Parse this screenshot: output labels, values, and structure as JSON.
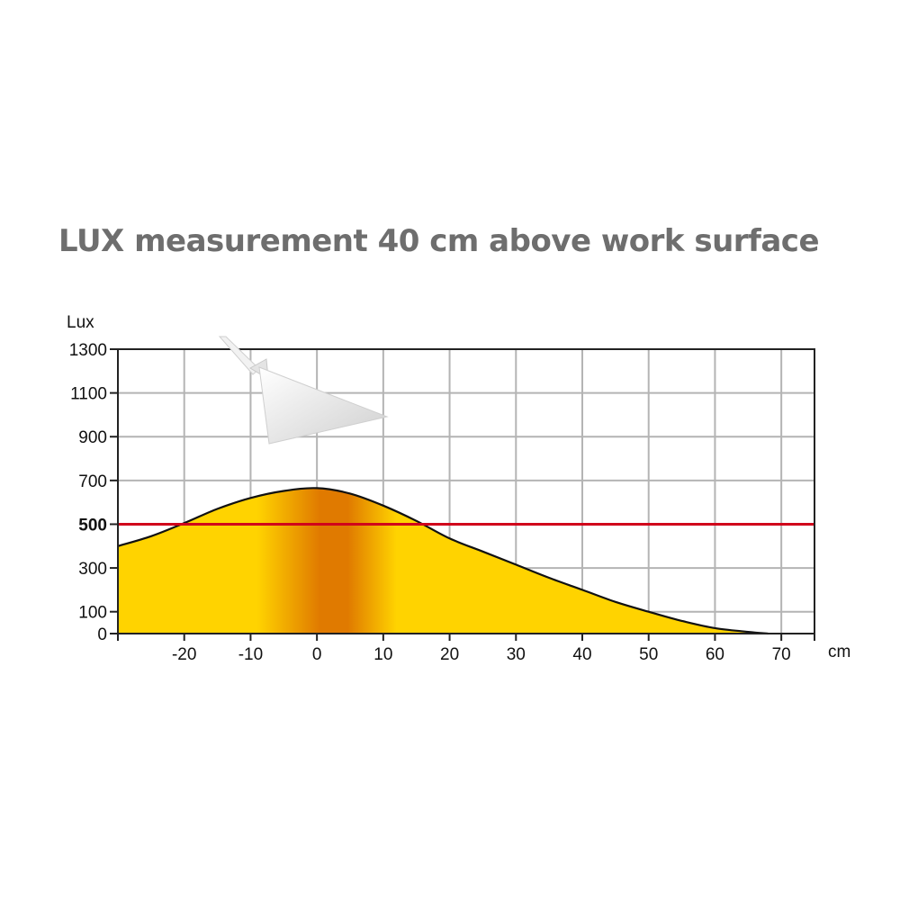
{
  "chart_data": {
    "type": "area",
    "title": "LUX measurement 40 cm above work surface",
    "ylabel": "Lux",
    "xlabel": "cm",
    "xlim": [
      -30,
      75
    ],
    "ylim": [
      0,
      1300
    ],
    "y_ticks": [
      0,
      100,
      300,
      500,
      700,
      900,
      1100,
      1300
    ],
    "x_ticks": [
      -20,
      -10,
      0,
      10,
      20,
      30,
      40,
      50,
      60,
      70
    ],
    "y_grid": [
      0,
      100,
      300,
      500,
      700,
      900,
      1100,
      1300
    ],
    "x_grid": [
      -20,
      -10,
      0,
      10,
      20,
      30,
      40,
      50,
      60,
      70
    ],
    "grid": true,
    "threshold": {
      "value": 500,
      "label": "500",
      "color": "#d0021b"
    },
    "series": [
      {
        "x": [
          -30,
          -25,
          -20,
          -15,
          -10,
          -5,
          0,
          5,
          10,
          15,
          20,
          25,
          30,
          35,
          40,
          45,
          50,
          55,
          60,
          65,
          68
        ],
        "values": [
          400,
          445,
          505,
          570,
          620,
          652,
          665,
          640,
          585,
          515,
          435,
          375,
          315,
          255,
          200,
          145,
          100,
          58,
          25,
          8,
          0
        ]
      }
    ],
    "colors": {
      "fill_edge": "#ffd300",
      "fill_center": "#e07a00",
      "outline": "#111111",
      "grid": "#b4b4b4",
      "axis": "#222222"
    }
  }
}
